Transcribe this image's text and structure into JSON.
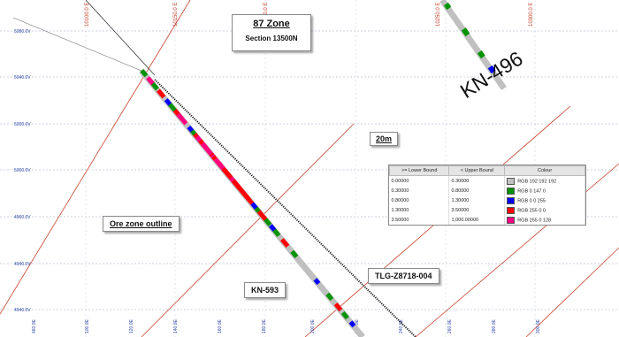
{
  "title": {
    "zone": "87 Zone",
    "section": "Section 13500N"
  },
  "labels": {
    "scale": "20m",
    "ore_zone": "Ore zone outline",
    "hole_kn593": "KN-593",
    "hole_tlg": "TLG-Z8718-004",
    "hole_kn496": "KN-496"
  },
  "elevation_ticks": [
    "5080.0V",
    "5040.0V",
    "5000.0V",
    "5000.0V",
    "4960.0V",
    "4940.0V",
    "4940.0V"
  ],
  "easting_ticks": [
    "10100.0 E",
    "10150.0 E",
    "10200.0 E",
    "10250.0 E",
    "10300.0 E"
  ],
  "bottom_ticks": [
    "460.0E",
    "100.0E",
    "120.0E",
    "140.0E",
    "160.0E",
    "180.0E",
    "200.0E",
    "220.0E",
    "240.0E",
    "260.0E",
    "280.0E",
    "300.0E"
  ],
  "legend": {
    "headers": [
      ">= Lower Bound",
      "< Upper Bound",
      "Colour"
    ],
    "rows": [
      {
        "lower": "0.00000",
        "upper": "0.30000",
        "colour_label": "RGB 192 192 192",
        "color": "#c0c0c0"
      },
      {
        "lower": "0.30000",
        "upper": "0.80000",
        "colour_label": "RGB 0 147 0",
        "color": "#009300"
      },
      {
        "lower": "0.80000",
        "upper": "1.30000",
        "colour_label": "RGB 0 0 255",
        "color": "#0000ff"
      },
      {
        "lower": "1.30000",
        "upper": "3.50000",
        "colour_label": "RGB 255 0 0",
        "color": "#ff0000"
      },
      {
        "lower": "3.50000",
        "upper": "1,000.00000",
        "colour_label": "RGB 255 0 128",
        "color": "#ff0080"
      }
    ]
  },
  "colors": {
    "grid_line": "#c8402a",
    "tick_text": "#2b46a8",
    "easting_text": "#c8402a",
    "gray": "#c0c0c0",
    "green": "#009300",
    "blue": "#0000ff",
    "red": "#ff0000",
    "pink": "#ff0080"
  }
}
